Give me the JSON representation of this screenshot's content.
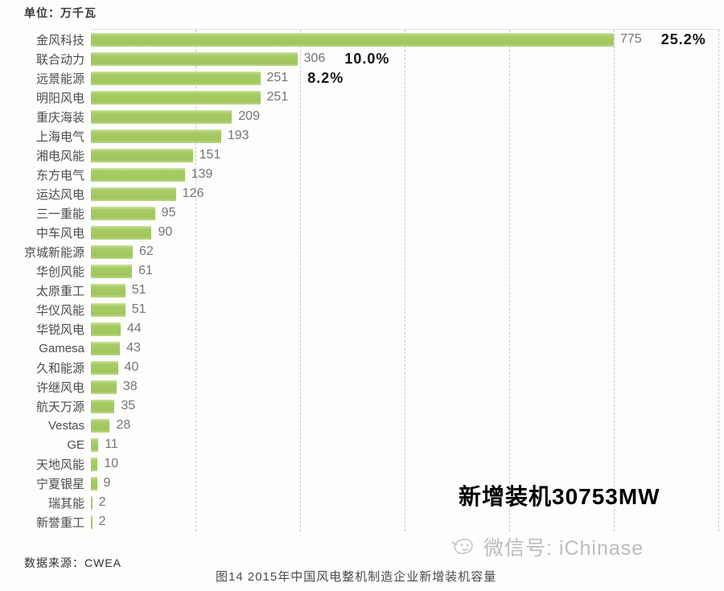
{
  "unit_label": "单位：万千瓦",
  "chart_data": {
    "type": "bar",
    "orientation": "horizontal",
    "title": "图14 2015年中国风电整机制造企业新增装机容量",
    "unit": "万千瓦",
    "xlim": [
      0,
      930
    ],
    "grid": true,
    "legend": false,
    "categories": [
      "金风科技",
      "联合动力",
      "远景能源",
      "明阳风电",
      "重庆海装",
      "上海电气",
      "湘电风能",
      "东方电气",
      "运达风电",
      "三一重能",
      "中车风电",
      "京城新能源",
      "华创风能",
      "太原重工",
      "华仪风能",
      "华锐风电",
      "Gamesa",
      "久和能源",
      "许继风电",
      "航天万源",
      "Vestas",
      "GE",
      "天地风能",
      "宁夏银星",
      "瑞其能",
      "新誉重工"
    ],
    "values": [
      775,
      306,
      251,
      251,
      209,
      193,
      151,
      139,
      126,
      95,
      90,
      62,
      61,
      51,
      51,
      44,
      43,
      40,
      38,
      35,
      28,
      11,
      10,
      9,
      2,
      2
    ],
    "percent_labels": [
      "25.2%",
      "10.0%",
      "8.2%",
      "",
      "",
      "",
      "",
      "",
      "",
      "",
      "",
      "",
      "",
      "",
      "",
      "",
      "",
      "",
      "",
      "",
      "",
      "",
      "",
      "",
      "",
      ""
    ]
  },
  "annotation_total": "新增装机30753MW",
  "source_label": "数据来源：CWEA",
  "caption": "图14 2015年中国风电整机制造企业新增装机容量",
  "watermark_text": "微信号: iChinase",
  "colors": {
    "bar": "#a3c85f",
    "bar_edge": "#cde3a2",
    "grid": "#c9c9c9",
    "category_label": "#4c4c4c",
    "value_label": "#757575",
    "percent_label": "#141414",
    "total_annotation": "#000000",
    "watermark": "#bcbcbc"
  }
}
